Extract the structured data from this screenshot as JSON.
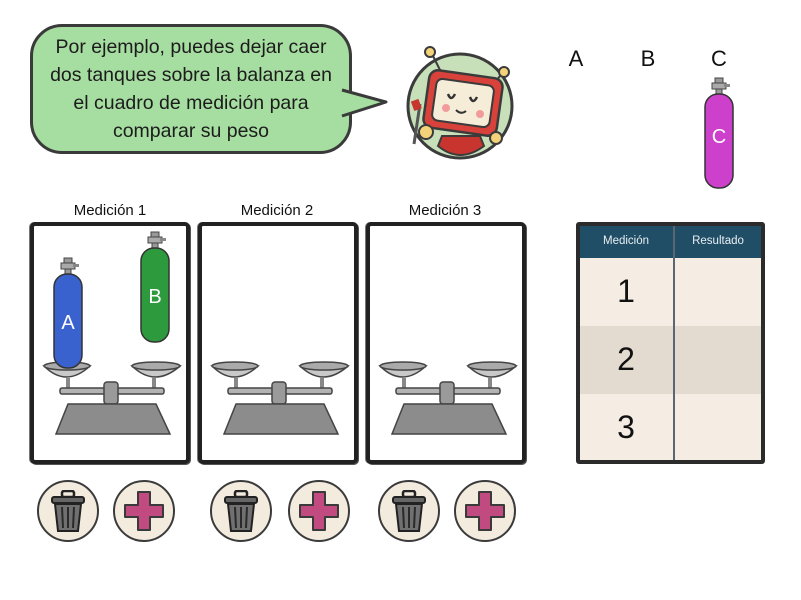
{
  "bubble": {
    "text": "Por ejemplo, puedes dejar caer dos tanques sobre la balanza en el cuadro de medición para comparar su peso"
  },
  "tanks_header": {
    "labels": [
      "A",
      "B",
      "C"
    ]
  },
  "tanks": {
    "a": {
      "letter": "A",
      "color": "#3a62cf"
    },
    "b": {
      "letter": "B",
      "color": "#2e9a3e"
    },
    "c": {
      "letter": "C",
      "color": "#cc40cc"
    }
  },
  "measurements": [
    {
      "label": "Medición 1"
    },
    {
      "label": "Medición 2"
    },
    {
      "label": "Medición 3"
    }
  ],
  "results_table": {
    "headers": [
      "Medición",
      "Resultado"
    ],
    "rows": [
      {
        "num": "1",
        "result": ""
      },
      {
        "num": "2",
        "result": ""
      },
      {
        "num": "3",
        "result": ""
      }
    ]
  },
  "icons": {
    "trash": "trash-icon",
    "add": "plus-icon"
  },
  "colors": {
    "bubble": "#a6dda0",
    "table_header": "#1f4e66",
    "plus": "#c14b80"
  }
}
